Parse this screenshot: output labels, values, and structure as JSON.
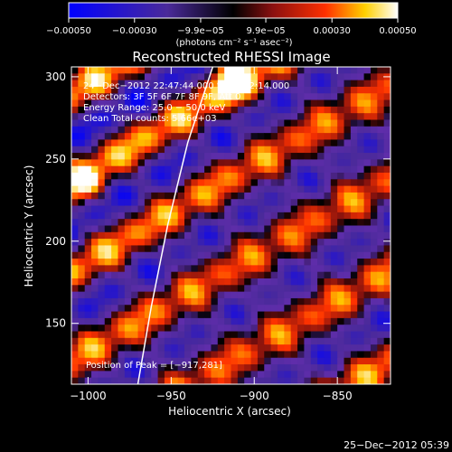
{
  "chart_data": {
    "type": "heatmap",
    "title": "Reconstructed RHESSI Image",
    "xlabel": "Heliocentric X (arcsec)",
    "ylabel": "Heliocentric Y (arcsec)",
    "xlim": [
      -1010,
      -818
    ],
    "ylim": [
      113,
      306
    ],
    "x_ticks": [
      -1000,
      -950,
      -900,
      -850
    ],
    "x_tick_labels": [
      "−1000",
      "−950",
      "−900",
      "−850"
    ],
    "y_ticks": [
      150,
      200,
      250,
      300
    ],
    "y_tick_labels": [
      "150",
      "200",
      "250",
      "300"
    ],
    "colorbar": {
      "range": [
        -0.0005,
        0.0005
      ],
      "tick_values": [
        -0.0005,
        -0.0003,
        -9.9e-05,
        9.9e-05,
        0.0003,
        0.0005
      ],
      "tick_labels": [
        "−0.00050",
        "−0.00030",
        "−9.9e−05",
        "9.9e−05",
        "0.00030",
        "0.00050"
      ],
      "units": "(photons cm⁻² s⁻¹ asec⁻²)",
      "colors": [
        "#0000ff",
        "#4a2a9a",
        "#000000",
        "#8a1010",
        "#ff3000",
        "#ffd000",
        "#ffffff"
      ]
    },
    "annotations": [
      "24−Dec−2012 22:47:44.000 to 22:52:14.000",
      "Detectors: 3F 5F 6F 7F 8F 9F, Att 0",
      "Energy Range: 25.0 − 50.0 keV",
      "Clean    Total counts: 5.66e+03"
    ],
    "peak_label": "Position of Peak = [−917,281]",
    "peak_position": [
      -917,
      281
    ],
    "limb": [
      [
        -970,
        113
      ],
      [
        -962,
        160
      ],
      [
        -952,
        210
      ],
      [
        -940,
        260
      ],
      [
        -925,
        306
      ]
    ]
  },
  "timestamp": "25−Dec−2012 05:39"
}
